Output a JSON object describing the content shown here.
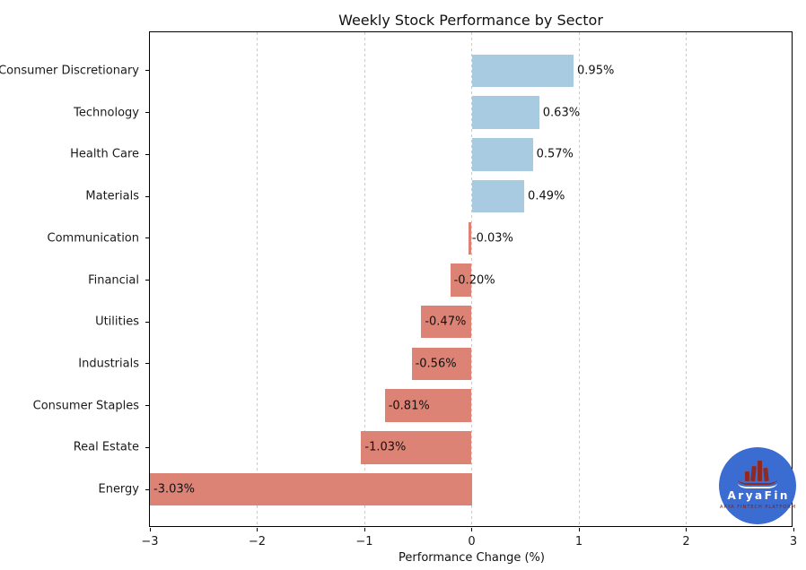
{
  "chart_data": {
    "type": "bar",
    "orientation": "horizontal",
    "title": "Weekly Stock Performance by Sector",
    "xlabel": "Performance Change (%)",
    "ylabel": "",
    "xlim": [
      -3,
      3
    ],
    "x_ticks": [
      -3,
      -2,
      -1,
      0,
      1,
      2,
      3
    ],
    "x_tick_labels": [
      "−3",
      "−2",
      "−1",
      "0",
      "1",
      "2",
      "3"
    ],
    "grid": "vertical-dashed",
    "legend": "none",
    "categories": [
      "Consumer Discretionary",
      "Technology",
      "Health Care",
      "Materials",
      "Communication",
      "Financial",
      "Utilities",
      "Industrials",
      "Consumer Staples",
      "Real Estate",
      "Energy"
    ],
    "values": [
      0.95,
      0.63,
      0.57,
      0.49,
      -0.03,
      -0.2,
      -0.47,
      -0.56,
      -0.81,
      -1.03,
      -3.03
    ],
    "value_labels": [
      "0.95%",
      "0.63%",
      "0.57%",
      "0.49%",
      "-0.03%",
      "-0.20%",
      "-0.47%",
      "-0.56%",
      "-0.81%",
      "-1.03%",
      "-3.03%"
    ],
    "positive_color": "#a8cbe2",
    "negative_color": "#dd8375",
    "gridline_color": "#c9c9c9",
    "frame_color": "#000000"
  },
  "logo": {
    "name": "AryaFin",
    "tagline": "ARYA FINTECH PLATFORM",
    "circle_color": "#3b6cd2",
    "glyph_color": "#8e2a23",
    "tagline_color": "#7d211b"
  }
}
